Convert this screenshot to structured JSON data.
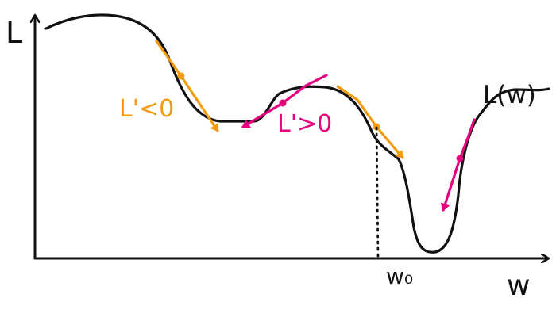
{
  "diagram": {
    "axes": {
      "y_axis_label": "L",
      "x_axis_label": "w"
    },
    "curve": {
      "label": "L(w)"
    },
    "annotations": {
      "negative_derivative_label": "L'<0",
      "positive_derivative_label": "L'>0",
      "point_label": "w₀"
    },
    "colors": {
      "curve": "#111111",
      "negative_slope": "#f39c12",
      "positive_slope": "#e6007e"
    }
  }
}
